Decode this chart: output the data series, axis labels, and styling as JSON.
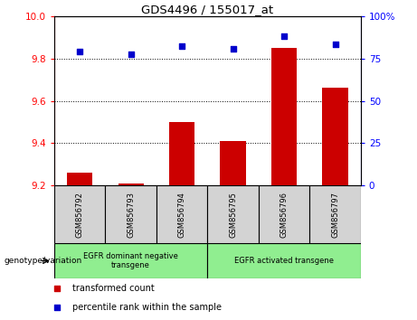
{
  "title": "GDS4496 / 155017_at",
  "samples": [
    "GSM856792",
    "GSM856793",
    "GSM856794",
    "GSM856795",
    "GSM856796",
    "GSM856797"
  ],
  "bar_values": [
    9.26,
    9.21,
    9.5,
    9.41,
    9.85,
    9.66
  ],
  "scatter_values": [
    79.0,
    77.5,
    82.0,
    80.5,
    88.0,
    83.5
  ],
  "bar_bottom": 9.2,
  "ylim_left": [
    9.2,
    10.0
  ],
  "ylim_right": [
    0,
    100
  ],
  "yticks_left": [
    9.2,
    9.4,
    9.6,
    9.8,
    10.0
  ],
  "yticks_right": [
    0,
    25,
    50,
    75,
    100
  ],
  "bar_color": "#cc0000",
  "scatter_color": "#0000cc",
  "group1_label": "EGFR dominant negative\ntransgene",
  "group2_label": "EGFR activated transgene",
  "genotype_label": "genotype/variation",
  "legend1": "transformed count",
  "legend2": "percentile rank within the sample",
  "group_box_color": "#90EE90",
  "sample_box_color": "#d3d3d3"
}
